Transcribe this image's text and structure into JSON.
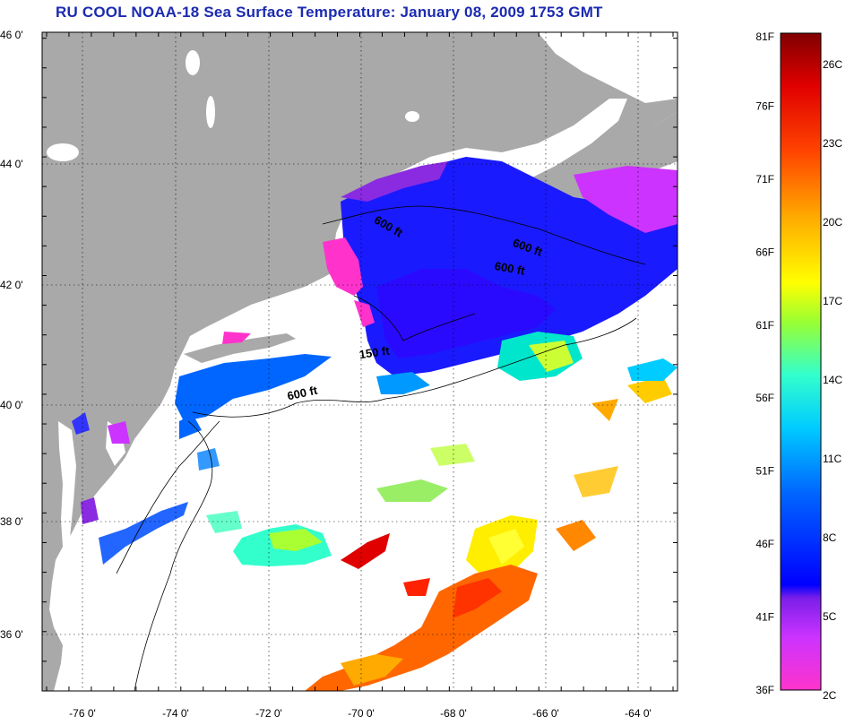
{
  "title": "RU COOL  NOAA-18  Sea Surface Temperature:  January 08, 2009 1753 GMT",
  "map": {
    "lat_ticks": [
      "46 0'",
      "44 0'",
      "42 0'",
      "40 0'",
      "38 0'",
      "36 0'"
    ],
    "lat_values": [
      46,
      44,
      42,
      40,
      38,
      36
    ],
    "lon_ticks": [
      "-76 0'",
      "-74 0'",
      "-72 0'",
      "-70 0'",
      "-68 0'",
      "-66 0'",
      "-64 0'"
    ],
    "lon_values": [
      -76,
      -74,
      -72,
      -70,
      -68,
      -66,
      -64
    ],
    "lat_range": [
      35,
      46.1
    ],
    "lon_range": [
      -77.1,
      -62.9
    ],
    "contour_labels": [
      {
        "text": "600 ft",
        "lon": -69.7,
        "lat": 42.9,
        "angle": 30
      },
      {
        "text": "600 ft",
        "lon": -66.6,
        "lat": 42.5,
        "angle": 20
      },
      {
        "text": "600 ft",
        "lon": -67.0,
        "lat": 42.1,
        "angle": 10
      },
      {
        "text": "150 ft",
        "lon": -70.0,
        "lat": 40.6,
        "angle": -8
      },
      {
        "text": "600 ft",
        "lon": -71.6,
        "lat": 39.9,
        "angle": -12
      }
    ],
    "colors": {
      "land": "#a9a9a9",
      "water": "#ffffff",
      "grid": "#000000"
    }
  },
  "colorbar": {
    "fahrenheit_labels": [
      "81F",
      "76F",
      "71F",
      "66F",
      "61F",
      "56F",
      "51F",
      "46F",
      "41F",
      "36F"
    ],
    "celsius_labels": [
      "26C",
      "23C",
      "20C",
      "17C",
      "14C",
      "11C",
      "8C",
      "5C",
      "2C"
    ],
    "range_f": [
      36,
      81
    ],
    "range_c": [
      2.2,
      27.2
    ],
    "colors_bottom_to_top": [
      "#ff33cc",
      "#cc33ff",
      "#8a2be2",
      "#0000ff",
      "#0066ff",
      "#00ccff",
      "#33ffcc",
      "#99ff33",
      "#ffff00",
      "#ffaa00",
      "#ff6600",
      "#ff0000",
      "#cc0000",
      "#800000"
    ]
  }
}
